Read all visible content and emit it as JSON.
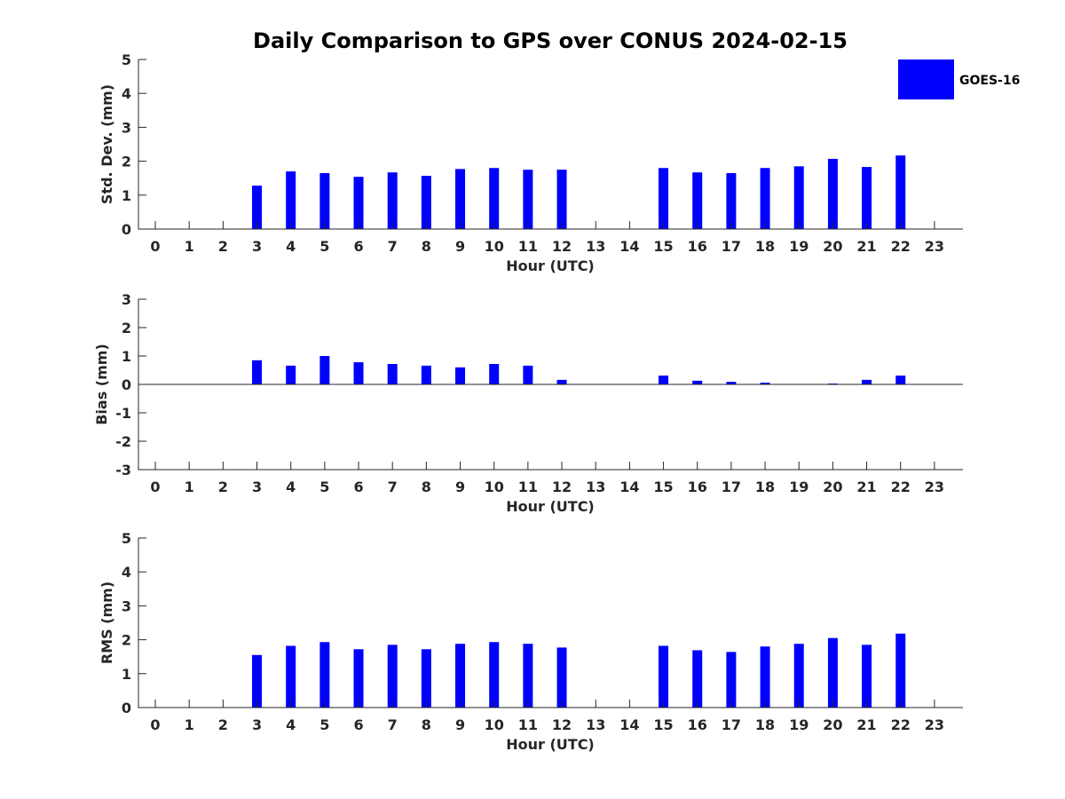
{
  "chart_data": {
    "type": "bar",
    "title": "Daily Comparison to GPS over CONUS 2024-02-15",
    "series_color": "#0000ff",
    "legend": {
      "label": "GOES-16",
      "placement": "top-right"
    },
    "subplots": [
      {
        "ylabel": "Std. Dev. (mm)",
        "xlabel": "Hour (UTC)",
        "ylim": [
          0,
          5
        ],
        "yticks": [
          0,
          1,
          2,
          3,
          4,
          5
        ],
        "ytick_labels": [
          "0",
          "1",
          "2",
          "3",
          "4",
          "5"
        ],
        "x": [
          0,
          1,
          2,
          3,
          4,
          5,
          6,
          7,
          8,
          9,
          10,
          11,
          12,
          13,
          14,
          15,
          16,
          17,
          18,
          19,
          20,
          21,
          22,
          23
        ],
        "xtick_labels": [
          "0",
          "1",
          "2",
          "3",
          "4",
          "5",
          "6",
          "7",
          "8",
          "9",
          "10",
          "11",
          "12",
          "13",
          "14",
          "15",
          "16",
          "17",
          "18",
          "19",
          "20",
          "21",
          "22",
          "23"
        ],
        "values": [
          null,
          null,
          null,
          1.28,
          1.7,
          1.65,
          1.54,
          1.67,
          1.57,
          1.77,
          1.8,
          1.75,
          1.75,
          null,
          null,
          1.8,
          1.67,
          1.65,
          1.8,
          1.85,
          2.07,
          1.83,
          2.17,
          null
        ]
      },
      {
        "ylabel": "Bias (mm)",
        "xlabel": "Hour (UTC)",
        "ylim": [
          -3,
          3
        ],
        "yticks": [
          -3,
          -2,
          -1,
          0,
          1,
          2,
          3
        ],
        "ytick_labels": [
          "-3",
          "-2",
          "-1",
          "0",
          "1",
          "2",
          "3"
        ],
        "x": [
          0,
          1,
          2,
          3,
          4,
          5,
          6,
          7,
          8,
          9,
          10,
          11,
          12,
          13,
          14,
          15,
          16,
          17,
          18,
          19,
          20,
          21,
          22,
          23
        ],
        "xtick_labels": [
          "0",
          "1",
          "2",
          "3",
          "4",
          "5",
          "6",
          "7",
          "8",
          "9",
          "10",
          "11",
          "12",
          "13",
          "14",
          "15",
          "16",
          "17",
          "18",
          "19",
          "20",
          "21",
          "22",
          "23"
        ],
        "values": [
          null,
          null,
          null,
          0.85,
          0.66,
          1.0,
          0.78,
          0.72,
          0.66,
          0.6,
          0.72,
          0.66,
          0.16,
          null,
          null,
          0.31,
          0.13,
          0.09,
          0.06,
          null,
          0.03,
          0.16,
          0.31,
          null
        ]
      },
      {
        "ylabel": "RMS (mm)",
        "xlabel": "Hour (UTC)",
        "ylim": [
          0,
          5
        ],
        "yticks": [
          0,
          1,
          2,
          3,
          4,
          5
        ],
        "ytick_labels": [
          "0",
          "1",
          "2",
          "3",
          "4",
          "5"
        ],
        "x": [
          0,
          1,
          2,
          3,
          4,
          5,
          6,
          7,
          8,
          9,
          10,
          11,
          12,
          13,
          14,
          15,
          16,
          17,
          18,
          19,
          20,
          21,
          22,
          23
        ],
        "xtick_labels": [
          "0",
          "1",
          "2",
          "3",
          "4",
          "5",
          "6",
          "7",
          "8",
          "9",
          "10",
          "11",
          "12",
          "13",
          "14",
          "15",
          "16",
          "17",
          "18",
          "19",
          "20",
          "21",
          "22",
          "23"
        ],
        "values": [
          null,
          null,
          null,
          1.55,
          1.82,
          1.93,
          1.72,
          1.85,
          1.72,
          1.88,
          1.93,
          1.88,
          1.77,
          null,
          null,
          1.82,
          1.69,
          1.64,
          1.8,
          1.88,
          2.05,
          1.85,
          2.18,
          null
        ]
      }
    ]
  }
}
